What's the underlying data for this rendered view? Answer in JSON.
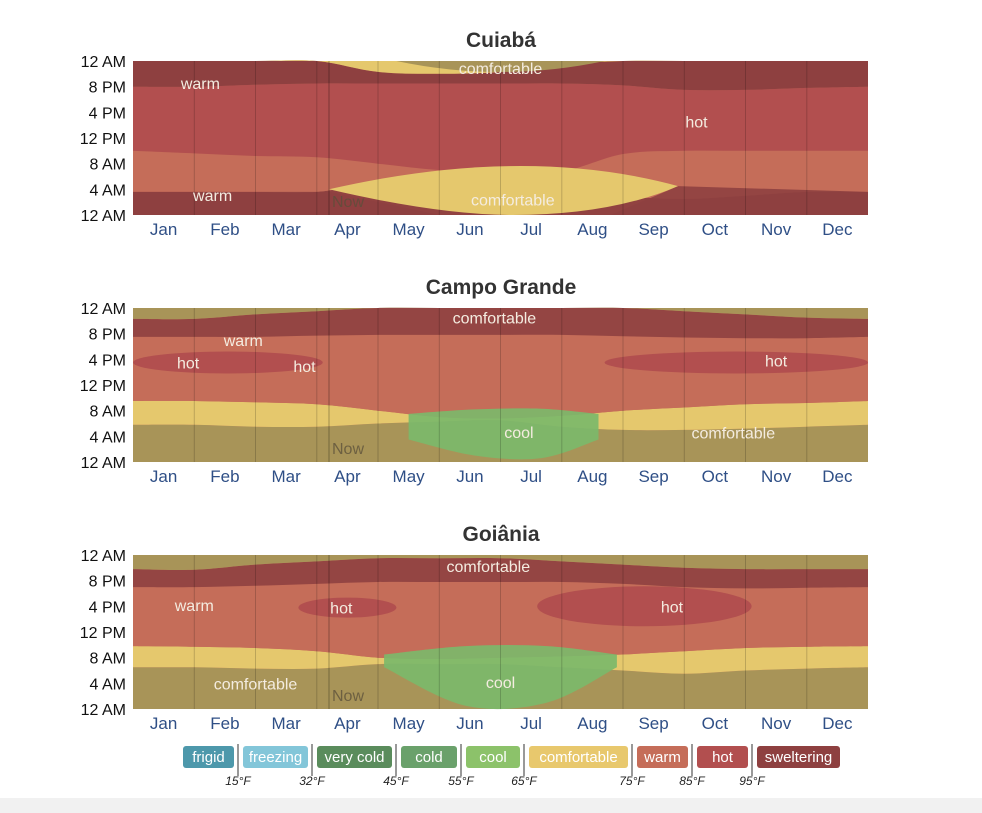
{
  "chart_data": [
    {
      "type": "heatmap",
      "title": "Cuiabá",
      "y_tick_labels": [
        "12 AM",
        "8 PM",
        "4 PM",
        "12 PM",
        "8 AM",
        "4 AM",
        "12 AM"
      ],
      "x_tick_labels": [
        "Jan",
        "Feb",
        "Mar",
        "Apr",
        "May",
        "Jun",
        "Jul",
        "Aug",
        "Sep",
        "Oct",
        "Nov",
        "Dec"
      ],
      "now_label": "Now",
      "now_month": 3.2,
      "band_edges_hours": [
        [
          3.6,
          3.6,
          3.6,
          3.6,
          5.0,
          5.1,
          5.0,
          4.7,
          3.0,
          2.5,
          3.0,
          3.6,
          3.6
        ],
        [
          10.0,
          9.6,
          9.2,
          9.0,
          8.0,
          7.0,
          6.8,
          6.8,
          9.5,
          10.0,
          10.0,
          10.0,
          10.0
        ],
        [
          20.0,
          20.0,
          20.3,
          20.5,
          20.5,
          20.5,
          20.5,
          20.5,
          20.2,
          19.5,
          19.5,
          19.8,
          20.0
        ],
        [
          24,
          24,
          24,
          24,
          22.3,
          22.0,
          22.3,
          23.5,
          24,
          24,
          24,
          24,
          24
        ]
      ],
      "band_categories_order": [
        "comfortable",
        "warm",
        "hot",
        "warm",
        "comfortable"
      ],
      "annotations": [
        {
          "text": "warm",
          "month": 1.1,
          "hour": 20.6
        },
        {
          "text": "comfortable",
          "month": 6.0,
          "hour": 22.9
        },
        {
          "text": "hot",
          "month": 9.2,
          "hour": 14.6
        },
        {
          "text": "warm",
          "month": 1.3,
          "hour": 3.1
        },
        {
          "text": "comfortable",
          "month": 6.2,
          "hour": 2.4
        }
      ]
    },
    {
      "type": "heatmap",
      "title": "Campo Grande",
      "y_tick_labels": [
        "12 AM",
        "8 PM",
        "4 PM",
        "12 PM",
        "8 AM",
        "4 AM",
        "12 AM"
      ],
      "x_tick_labels": [
        "Jan",
        "Feb",
        "Mar",
        "Apr",
        "May",
        "Jun",
        "Jul",
        "Aug",
        "Sep",
        "Oct",
        "Nov",
        "Dec"
      ],
      "now_label": "Now",
      "now_month": 3.2,
      "band_edges_hours": [
        [
          5.8,
          5.8,
          5.5,
          5.5,
          6.0,
          6.3,
          6.5,
          5.5,
          5.0,
          5.0,
          5.2,
          5.5,
          5.8
        ],
        [
          9.5,
          9.5,
          9.3,
          9.0,
          8.0,
          7.0,
          6.8,
          7.2,
          8.0,
          8.5,
          9.0,
          9.2,
          9.5
        ],
        [
          19.5,
          19.5,
          19.5,
          19.7,
          19.8,
          19.8,
          19.8,
          19.8,
          19.6,
          19.4,
          19.3,
          19.3,
          19.5
        ],
        [
          22.3,
          22.3,
          23.0,
          23.5,
          24,
          24,
          24,
          24,
          24,
          23.5,
          23.0,
          22.5,
          22.3
        ]
      ],
      "band_categories_order": [
        "comfortable",
        "comfortable",
        "warm",
        "warm",
        "comfortable"
      ],
      "cool_region": {
        "start_month": 4.5,
        "end_month": 7.6,
        "low_hours": [
          3.5,
          1.0,
          0.6,
          3.5
        ],
        "high_hours": [
          7.5,
          8.2,
          8.3,
          7.5
        ]
      },
      "hot_regions": [
        {
          "start_month": 0.0,
          "end_month": 3.1,
          "hour": 15.5
        },
        {
          "start_month": 7.7,
          "end_month": 12.0,
          "hour": 15.5
        }
      ],
      "annotations": [
        {
          "text": "comfortable",
          "month": 5.9,
          "hour": 22.5
        },
        {
          "text": "warm",
          "month": 1.8,
          "hour": 19.0
        },
        {
          "text": "hot",
          "month": 0.9,
          "hour": 15.5
        },
        {
          "text": "hot",
          "month": 2.8,
          "hour": 15.0
        },
        {
          "text": "hot",
          "month": 10.5,
          "hour": 15.8
        },
        {
          "text": "cool",
          "month": 6.3,
          "hour": 4.7
        },
        {
          "text": "comfortable",
          "month": 9.8,
          "hour": 4.6
        }
      ]
    },
    {
      "type": "heatmap",
      "title": "Goiânia",
      "y_tick_labels": [
        "12 AM",
        "8 PM",
        "4 PM",
        "12 PM",
        "8 AM",
        "4 AM",
        "12 AM"
      ],
      "x_tick_labels": [
        "Jan",
        "Feb",
        "Mar",
        "Apr",
        "May",
        "Jun",
        "Jul",
        "Aug",
        "Sep",
        "Oct",
        "Nov",
        "Dec"
      ],
      "now_label": "Now",
      "now_month": 3.2,
      "band_edges_hours": [
        [
          6.5,
          6.5,
          6.3,
          6.3,
          7.0,
          7.0,
          7.0,
          6.5,
          6.0,
          5.5,
          6.0,
          6.3,
          6.5
        ],
        [
          9.8,
          9.7,
          9.5,
          9.0,
          8.0,
          7.8,
          8.0,
          8.2,
          8.5,
          9.0,
          9.5,
          9.7,
          9.8
        ],
        [
          19.0,
          19.0,
          19.2,
          19.5,
          19.8,
          19.8,
          19.8,
          19.8,
          19.5,
          19.0,
          18.8,
          18.9,
          19.0
        ],
        [
          21.8,
          21.7,
          22.5,
          23.0,
          23.5,
          23.5,
          23.5,
          23.0,
          22.5,
          22.0,
          21.8,
          21.8,
          21.8
        ]
      ],
      "band_categories_order": [
        "comfortable",
        "comfortable",
        "warm",
        "warm",
        "comfortable"
      ],
      "cool_region": {
        "start_month": 4.1,
        "end_month": 7.9,
        "low_hours": [
          6.5,
          0.5,
          1.0,
          6.5
        ],
        "high_hours": [
          8.5,
          9.8,
          9.8,
          8.5
        ]
      },
      "hot_regions": [
        {
          "start_month": 2.7,
          "end_month": 4.3,
          "hour": 15.8
        },
        {
          "start_month": 6.6,
          "end_month": 10.1,
          "hour": 16.0
        }
      ],
      "annotations": [
        {
          "text": "comfortable",
          "month": 5.8,
          "hour": 22.3
        },
        {
          "text": "warm",
          "month": 1.0,
          "hour": 16.2
        },
        {
          "text": "hot",
          "month": 3.4,
          "hour": 15.8
        },
        {
          "text": "hot",
          "month": 8.8,
          "hour": 16.0
        },
        {
          "text": "comfortable",
          "month": 2.0,
          "hour": 4.0
        },
        {
          "text": "cool",
          "month": 6.0,
          "hour": 4.2
        }
      ]
    }
  ],
  "legend": {
    "items": [
      {
        "label": "frigid",
        "color": "#4d98ab"
      },
      {
        "label": "freezing",
        "color": "#83c6d9"
      },
      {
        "label": "very cold",
        "color": "#5a8c5c"
      },
      {
        "label": "cold",
        "color": "#6aa16b"
      },
      {
        "label": "cool",
        "color": "#8cc26a"
      },
      {
        "label": "comfortable",
        "color": "#e8c86d"
      },
      {
        "label": "warm",
        "color": "#c56d59"
      },
      {
        "label": "hot",
        "color": "#b24f4f"
      },
      {
        "label": "sweltering",
        "color": "#8e4040"
      }
    ],
    "thresholds": [
      "15°F",
      "32°F",
      "45°F",
      "55°F",
      "65°F",
      "75°F",
      "85°F",
      "95°F"
    ]
  },
  "colors": {
    "comfortable_night": "#a89458",
    "comfortable_day": "#e5c86d",
    "warm": "#c56d59",
    "hot": "#b24f4f",
    "sweltering": "#8e4040",
    "cool": "#7cb86a",
    "axis_text": "#2f4f86",
    "title_text": "#333333"
  }
}
